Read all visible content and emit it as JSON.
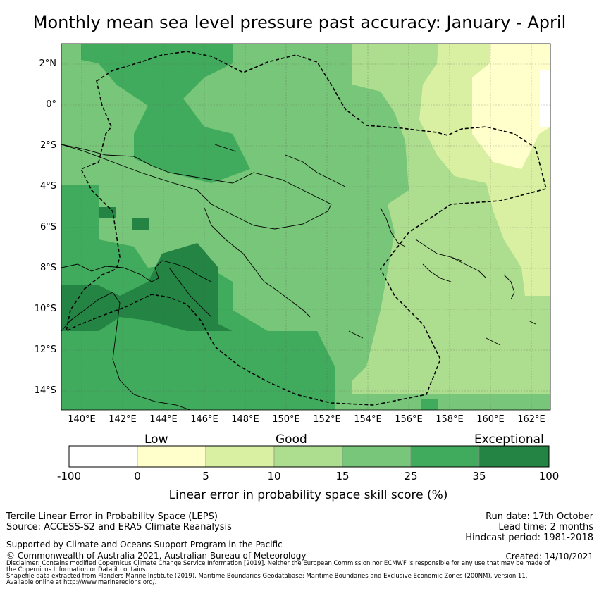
{
  "title": "Monthly mean sea level pressure past accuracy: January - April",
  "map": {
    "lat_labels": [
      "2°N",
      "0°",
      "2°S",
      "4°S",
      "6°S",
      "8°S",
      "10°S",
      "12°S",
      "14°S"
    ],
    "lon_labels": [
      "140°E",
      "142°E",
      "144°E",
      "146°E",
      "148°E",
      "150°E",
      "152°E",
      "154°E",
      "156°E",
      "158°E",
      "160°E",
      "162°E"
    ],
    "lat_range": [
      -15,
      3
    ],
    "lon_range": [
      139,
      163
    ],
    "boundary_style": "dashed black line (EEZ)"
  },
  "colorbar": {
    "category_labels": [
      "Low",
      "Good",
      "Exceptional"
    ],
    "ticks": [
      "-100",
      "0",
      "5",
      "10",
      "15",
      "25",
      "35",
      "100"
    ],
    "colors": [
      "#ffffff",
      "#ffffcc",
      "#d9f0a3",
      "#addd8e",
      "#78c679",
      "#41ab5d",
      "#238443"
    ],
    "label": "Linear error in probability space skill score (%)"
  },
  "footer": {
    "left_line1": "Tercile Linear Error in Probability Space (LEPS)",
    "left_line2": "Source: ACCESS-S2 and ERA5 Climate Reanalysis",
    "support": "Supported by Climate and Oceans Support Program in the Pacific",
    "copyright": "© Commonwealth of Australia 2021, Australian Bureau of Meteorology",
    "run_date": "Run date: 17th October",
    "lead_time": "Lead time: 2 months",
    "hindcast": "Hindcast period: 1981-2018",
    "created": "Created: 14/10/2021",
    "disclaimer1": "Disclaimer: Contains modified Copernicus Climate Change Service Information [2019]. Neither the European Commission nor ECMWF is responsible for any use that may be made of",
    "disclaimer2": "the Copernicus Information or Data it contains.",
    "shapefile1": "Shapefile data extracted from Flanders Marine Institute (2019), Maritime Boundaries Geodatabase: Maritime Boundaries and Exclusive Economic Zones (200NM), version 11.",
    "shapefile2": "Available online at http://www.marineregions.org/."
  }
}
